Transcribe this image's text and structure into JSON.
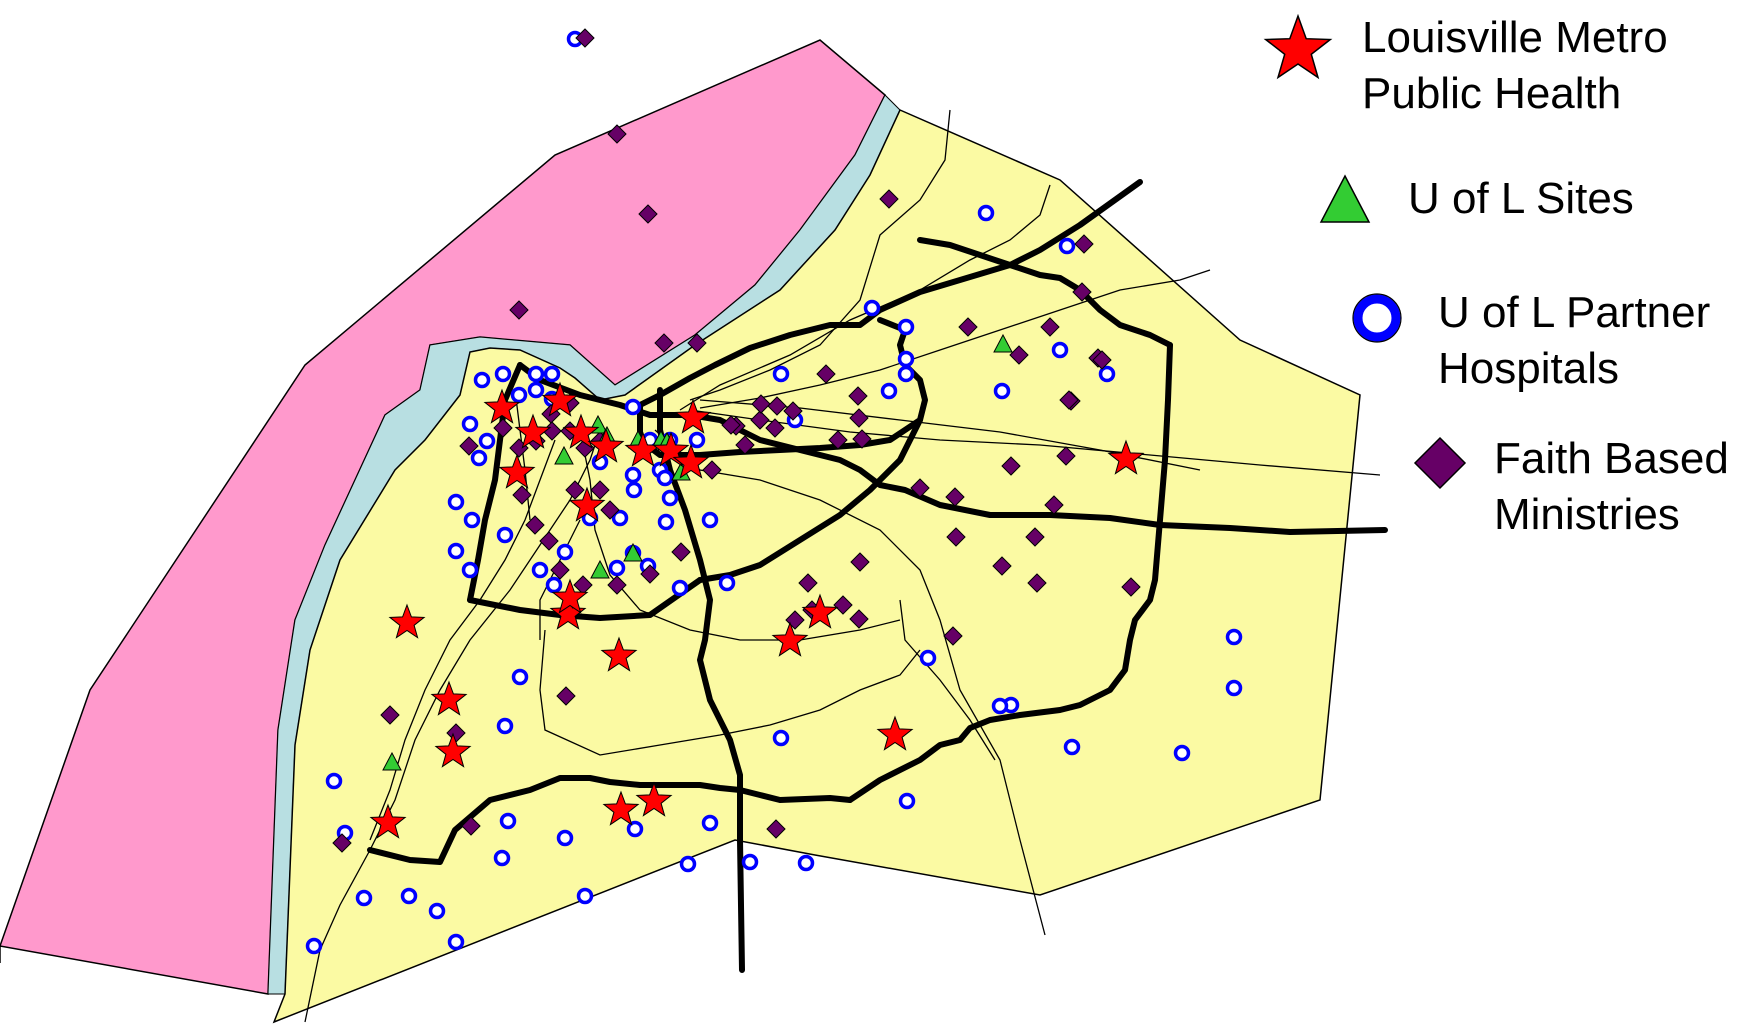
{
  "colors": {
    "indiana": "#ff99cc",
    "river": "#b8dfe2",
    "county": "#fbfaa3",
    "road": "#000000",
    "star": "#ff0000",
    "triangle": "#33cc33",
    "circle": "#0000ff",
    "diamond": "#660066"
  },
  "legend": [
    {
      "key": "public-health",
      "icon": "red-star-icon",
      "label": "Louisville Metro\nPublic Health"
    },
    {
      "key": "uofl-sites",
      "icon": "green-triangle-icon",
      "label": "U of L Sites"
    },
    {
      "key": "partner-hospitals",
      "icon": "blue-circle-icon",
      "label": "U of L Partner\nHospitals"
    },
    {
      "key": "faith-based",
      "icon": "purple-diamond-icon",
      "label": "Faith Based\nMinistries"
    }
  ]
}
